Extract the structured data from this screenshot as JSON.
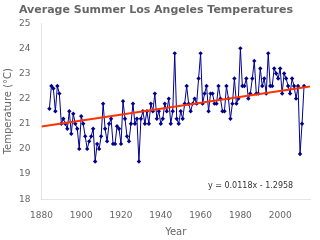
{
  "chart_data": {
    "type": "line",
    "title": "Average Summer Los Angeles Temperatures",
    "x_label": "Year",
    "y_label": "Temperature (°C)",
    "xlim": [
      1880,
      2015
    ],
    "ylim": [
      18,
      25
    ],
    "xticks": [
      1880,
      1900,
      1920,
      1940,
      1960,
      1980,
      2000
    ],
    "yticks": [
      18,
      19,
      20,
      21,
      22,
      23,
      24,
      25
    ],
    "grid": false,
    "annotations": [
      "y = 0.0118x - 1.2958"
    ],
    "series": [
      {
        "color": "#00008B",
        "marker": "diamond",
        "line_style": "solid",
        "x": [
          1884,
          1885,
          1886,
          1887,
          1888,
          1889,
          1890,
          1891,
          1892,
          1893,
          1894,
          1895,
          1896,
          1897,
          1898,
          1899,
          1900,
          1901,
          1902,
          1903,
          1904,
          1905,
          1906,
          1907,
          1908,
          1909,
          1910,
          1911,
          1912,
          1913,
          1914,
          1915,
          1916,
          1917,
          1918,
          1919,
          1920,
          1921,
          1922,
          1923,
          1924,
          1925,
          1926,
          1927,
          1928,
          1929,
          1930,
          1931,
          1932,
          1933,
          1934,
          1935,
          1936,
          1937,
          1938,
          1939,
          1940,
          1941,
          1942,
          1943,
          1944,
          1945,
          1946,
          1947,
          1948,
          1949,
          1950,
          1951,
          1952,
          1953,
          1954,
          1955,
          1956,
          1957,
          1958,
          1959,
          1960,
          1961,
          1962,
          1963,
          1964,
          1965,
          1966,
          1967,
          1968,
          1969,
          1970,
          1971,
          1972,
          1973,
          1974,
          1975,
          1976,
          1977,
          1978,
          1979,
          1980,
          1981,
          1982,
          1983,
          1984,
          1985,
          1986,
          1987,
          1988,
          1989,
          1990,
          1991,
          1992,
          1993,
          1994,
          1995,
          1996,
          1997,
          1998,
          1999,
          2000,
          2001,
          2002,
          2003,
          2004,
          2005,
          2006,
          2007,
          2008,
          2009,
          2010,
          2011,
          2012
        ],
        "values": [
          21.6,
          22.5,
          22.4,
          21.5,
          22.5,
          22.2,
          21.0,
          21.2,
          21.0,
          20.8,
          21.5,
          20.6,
          21.4,
          21.0,
          20.8,
          20.0,
          21.3,
          21.0,
          20.5,
          20.0,
          20.3,
          20.5,
          20.8,
          19.5,
          20.2,
          20.0,
          20.5,
          21.8,
          20.8,
          20.3,
          21.0,
          21.2,
          20.2,
          20.2,
          20.9,
          20.8,
          20.2,
          21.9,
          21.2,
          20.5,
          20.3,
          21.0,
          21.8,
          21.0,
          21.2,
          19.5,
          21.2,
          21.5,
          21.0,
          21.5,
          21.0,
          21.8,
          21.5,
          22.2,
          21.2,
          21.5,
          21.0,
          21.2,
          21.8,
          21.5,
          22.0,
          21.0,
          21.5,
          23.8,
          21.2,
          21.0,
          21.5,
          21.2,
          21.8,
          22.5,
          21.8,
          21.5,
          21.8,
          22.0,
          21.8,
          22.8,
          23.8,
          21.8,
          22.2,
          22.5,
          21.5,
          22.2,
          22.2,
          21.8,
          21.8,
          22.5,
          22.0,
          21.5,
          21.5,
          22.5,
          22.0,
          21.2,
          21.8,
          22.8,
          21.8,
          22.0,
          24.0,
          22.5,
          22.5,
          22.8,
          22.0,
          22.2,
          22.8,
          23.5,
          22.2,
          22.2,
          23.2,
          22.5,
          22.8,
          22.2,
          23.8,
          22.5,
          22.5,
          23.2,
          23.0,
          22.8,
          23.2,
          22.2,
          23.0,
          22.8,
          22.5,
          22.2,
          22.8,
          22.5,
          22.0,
          22.5,
          19.8,
          21.0,
          22.5
        ]
      },
      {
        "color": "#FF3300",
        "marker": "none",
        "line_style": "solid",
        "x": [
          1880,
          2015
        ],
        "values": [
          20.8882,
          22.4812
        ]
      }
    ]
  }
}
